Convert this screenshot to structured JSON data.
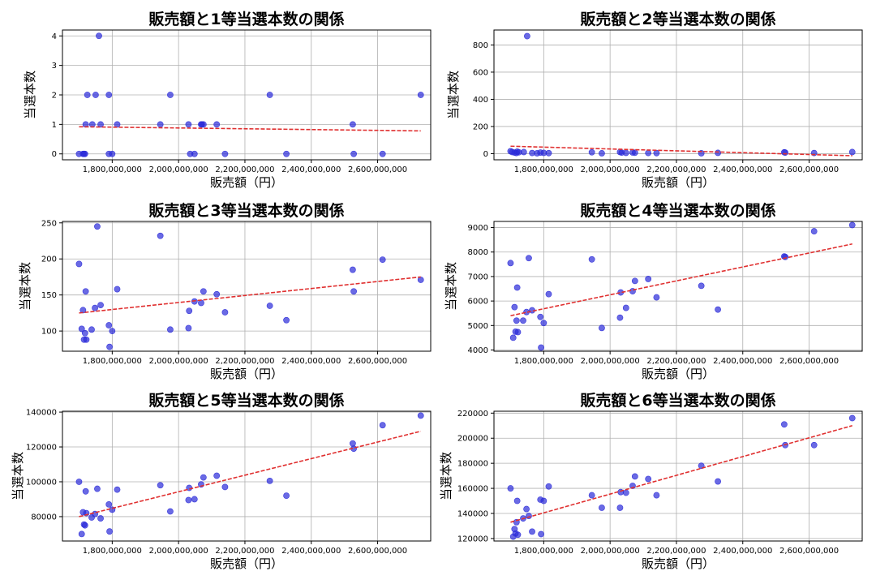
{
  "figure": {
    "x_tick_labels": [
      "1,800,000,000",
      "2,000,000,000",
      "2,200,000,000",
      "2,400,000,000",
      "2,600,000,000"
    ],
    "colors": {
      "point": "#2b2bd9",
      "trend": "#e03030",
      "grid": "#b0b0b0"
    }
  },
  "chart_data": [
    {
      "type": "scatter",
      "title": "販売額と1等当選本数の関係",
      "xlabel": "販売額（円）",
      "ylabel": "当選本数",
      "xlim": [
        1650000000,
        2760000000
      ],
      "ylim": [
        -0.2,
        4.2
      ],
      "x_ticks": [
        1800000000,
        2000000000,
        2200000000,
        2400000000,
        2600000000
      ],
      "y_ticks": [
        0,
        1,
        2,
        3,
        4
      ],
      "y_tick_labels": [
        "0",
        "1",
        "2",
        "3",
        "4"
      ],
      "grid": true,
      "trend_line": {
        "x": [
          1700000000,
          2730000000
        ],
        "y": [
          0.92,
          0.78
        ]
      },
      "points": [
        [
          1700000000,
          0
        ],
        [
          1712000000,
          0
        ],
        [
          1715000000,
          0
        ],
        [
          1718000000,
          0
        ],
        [
          1720000000,
          1
        ],
        [
          1725000000,
          2
        ],
        [
          1740000000,
          1
        ],
        [
          1750000000,
          2
        ],
        [
          1760000000,
          4
        ],
        [
          1765000000,
          1
        ],
        [
          1790000000,
          2
        ],
        [
          1790000000,
          0
        ],
        [
          1800000000,
          0
        ],
        [
          1815000000,
          1
        ],
        [
          1945000000,
          1
        ],
        [
          1975000000,
          2
        ],
        [
          2030000000,
          1
        ],
        [
          2035000000,
          0
        ],
        [
          2048000000,
          0
        ],
        [
          2068000000,
          1
        ],
        [
          2070000000,
          1
        ],
        [
          2075000000,
          1
        ],
        [
          2115000000,
          1
        ],
        [
          2140000000,
          0
        ],
        [
          2275000000,
          2
        ],
        [
          2325000000,
          0
        ],
        [
          2525000000,
          1
        ],
        [
          2528000000,
          0
        ],
        [
          2615000000,
          0
        ],
        [
          2730000000,
          2
        ]
      ]
    },
    {
      "type": "scatter",
      "title": "販売額と2等当選本数の関係",
      "xlabel": "販売額（円）",
      "ylabel": "当選本数",
      "xlim": [
        1650000000,
        2760000000
      ],
      "ylim": [
        -45,
        910
      ],
      "x_ticks": [
        1800000000,
        2000000000,
        2200000000,
        2400000000,
        2600000000
      ],
      "y_ticks": [
        0,
        200,
        400,
        600,
        800
      ],
      "y_tick_labels": [
        "0",
        "200",
        "400",
        "600",
        "800"
      ],
      "grid": true,
      "trend_line": {
        "x": [
          1700000000,
          2730000000
        ],
        "y": [
          55,
          -15
        ]
      },
      "points": [
        [
          1700000000,
          18
        ],
        [
          1705000000,
          12
        ],
        [
          1712000000,
          8
        ],
        [
          1718000000,
          5
        ],
        [
          1720000000,
          15
        ],
        [
          1725000000,
          10
        ],
        [
          1740000000,
          12
        ],
        [
          1750000000,
          865
        ],
        [
          1765000000,
          5
        ],
        [
          1780000000,
          3
        ],
        [
          1790000000,
          8
        ],
        [
          1800000000,
          6
        ],
        [
          1815000000,
          4
        ],
        [
          1945000000,
          10
        ],
        [
          1975000000,
          3
        ],
        [
          2030000000,
          12
        ],
        [
          2035000000,
          8
        ],
        [
          2048000000,
          6
        ],
        [
          2068000000,
          9
        ],
        [
          2075000000,
          7
        ],
        [
          2115000000,
          5
        ],
        [
          2140000000,
          4
        ],
        [
          2275000000,
          3
        ],
        [
          2325000000,
          6
        ],
        [
          2525000000,
          10
        ],
        [
          2528000000,
          8
        ],
        [
          2615000000,
          5
        ],
        [
          2730000000,
          12
        ]
      ]
    },
    {
      "type": "scatter",
      "title": "販売額と3等当選本数の関係",
      "xlabel": "販売額（円）",
      "ylabel": "当選本数",
      "xlim": [
        1650000000,
        2760000000
      ],
      "ylim": [
        72,
        252
      ],
      "x_ticks": [
        1800000000,
        2000000000,
        2200000000,
        2400000000,
        2600000000
      ],
      "y_ticks": [
        100,
        150,
        200,
        250
      ],
      "y_tick_labels": [
        "100",
        "150",
        "200",
        "250"
      ],
      "grid": true,
      "trend_line": {
        "x": [
          1700000000,
          2730000000
        ],
        "y": [
          125,
          175
        ]
      },
      "points": [
        [
          1700000000,
          193
        ],
        [
          1708000000,
          103
        ],
        [
          1712000000,
          129
        ],
        [
          1715000000,
          88
        ],
        [
          1718000000,
          97
        ],
        [
          1720000000,
          155
        ],
        [
          1722000000,
          88
        ],
        [
          1738000000,
          102
        ],
        [
          1748000000,
          132
        ],
        [
          1755000000,
          245
        ],
        [
          1765000000,
          136
        ],
        [
          1790000000,
          108
        ],
        [
          1792000000,
          78
        ],
        [
          1800000000,
          100
        ],
        [
          1815000000,
          158
        ],
        [
          1945000000,
          232
        ],
        [
          1975000000,
          102
        ],
        [
          2030000000,
          104
        ],
        [
          2032000000,
          128
        ],
        [
          2048000000,
          141
        ],
        [
          2068000000,
          139
        ],
        [
          2075000000,
          155
        ],
        [
          2115000000,
          151
        ],
        [
          2140000000,
          126
        ],
        [
          2275000000,
          135
        ],
        [
          2325000000,
          115
        ],
        [
          2525000000,
          185
        ],
        [
          2528000000,
          155
        ],
        [
          2615000000,
          199
        ],
        [
          2730000000,
          171
        ]
      ]
    },
    {
      "type": "scatter",
      "title": "販売額と4等当選本数の関係",
      "xlabel": "販売額（円）",
      "ylabel": "当選本数",
      "xlim": [
        1650000000,
        2760000000
      ],
      "ylim": [
        3950,
        9250
      ],
      "x_ticks": [
        1800000000,
        2000000000,
        2200000000,
        2400000000,
        2600000000
      ],
      "y_ticks": [
        4000,
        5000,
        6000,
        7000,
        8000,
        9000
      ],
      "y_tick_labels": [
        "4000",
        "5000",
        "6000",
        "7000",
        "8000",
        "9000"
      ],
      "grid": true,
      "trend_line": {
        "x": [
          1700000000,
          2730000000
        ],
        "y": [
          5400,
          8330
        ]
      },
      "points": [
        [
          1700000000,
          7550
        ],
        [
          1708000000,
          4500
        ],
        [
          1712000000,
          5750
        ],
        [
          1715000000,
          4750
        ],
        [
          1718000000,
          5200
        ],
        [
          1720000000,
          6550
        ],
        [
          1722000000,
          4730
        ],
        [
          1738000000,
          5200
        ],
        [
          1748000000,
          5550
        ],
        [
          1755000000,
          7750
        ],
        [
          1765000000,
          5620
        ],
        [
          1790000000,
          5350
        ],
        [
          1792000000,
          4100
        ],
        [
          1800000000,
          5100
        ],
        [
          1815000000,
          6280
        ],
        [
          1945000000,
          7700
        ],
        [
          1975000000,
          4900
        ],
        [
          2030000000,
          5320
        ],
        [
          2032000000,
          6350
        ],
        [
          2048000000,
          5720
        ],
        [
          2068000000,
          6400
        ],
        [
          2075000000,
          6820
        ],
        [
          2115000000,
          6900
        ],
        [
          2140000000,
          6150
        ],
        [
          2275000000,
          6620
        ],
        [
          2325000000,
          5650
        ],
        [
          2525000000,
          7820
        ],
        [
          2528000000,
          7800
        ],
        [
          2615000000,
          8850
        ],
        [
          2730000000,
          9100
        ]
      ]
    },
    {
      "type": "scatter",
      "title": "販売額と5等当選本数の関係",
      "xlabel": "販売額（円）",
      "ylabel": "当選本数",
      "xlim": [
        1650000000,
        2760000000
      ],
      "ylim": [
        66000,
        140500
      ],
      "x_ticks": [
        1800000000,
        2000000000,
        2200000000,
        2400000000,
        2600000000
      ],
      "y_ticks": [
        80000,
        100000,
        120000,
        140000
      ],
      "y_tick_labels": [
        "80000",
        "100000",
        "120000",
        "140000"
      ],
      "grid": true,
      "trend_line": {
        "x": [
          1700000000,
          2730000000
        ],
        "y": [
          80000,
          129000
        ]
      },
      "points": [
        [
          1700000000,
          100000
        ],
        [
          1708000000,
          70000
        ],
        [
          1712000000,
          82500
        ],
        [
          1715000000,
          75500
        ],
        [
          1718000000,
          75000
        ],
        [
          1720000000,
          94500
        ],
        [
          1722000000,
          82000
        ],
        [
          1738000000,
          79500
        ],
        [
          1748000000,
          81500
        ],
        [
          1755000000,
          96000
        ],
        [
          1765000000,
          79000
        ],
        [
          1790000000,
          87000
        ],
        [
          1792000000,
          71500
        ],
        [
          1800000000,
          84000
        ],
        [
          1815000000,
          95500
        ],
        [
          1945000000,
          98000
        ],
        [
          1975000000,
          83000
        ],
        [
          2030000000,
          89500
        ],
        [
          2032000000,
          96500
        ],
        [
          2048000000,
          90000
        ],
        [
          2068000000,
          98500
        ],
        [
          2075000000,
          102500
        ],
        [
          2115000000,
          103500
        ],
        [
          2140000000,
          97000
        ],
        [
          2275000000,
          100500
        ],
        [
          2325000000,
          92000
        ],
        [
          2525000000,
          122000
        ],
        [
          2528000000,
          119000
        ],
        [
          2615000000,
          132500
        ],
        [
          2730000000,
          138000
        ]
      ]
    },
    {
      "type": "scatter",
      "title": "販売額と6等当選本数の関係",
      "xlabel": "販売額（円）",
      "ylabel": "当選本数",
      "xlim": [
        1650000000,
        2760000000
      ],
      "ylim": [
        118000,
        221500
      ],
      "x_ticks": [
        1800000000,
        2000000000,
        2200000000,
        2400000000,
        2600000000
      ],
      "y_ticks": [
        120000,
        140000,
        160000,
        180000,
        200000,
        220000
      ],
      "y_tick_labels": [
        "120000",
        "140000",
        "160000",
        "180000",
        "200000",
        "220000"
      ],
      "grid": true,
      "trend_line": {
        "x": [
          1700000000,
          2730000000
        ],
        "y": [
          133000,
          210000
        ]
      },
      "points": [
        [
          1700000000,
          160000
        ],
        [
          1708000000,
          121500
        ],
        [
          1712000000,
          127500
        ],
        [
          1715000000,
          124000
        ],
        [
          1718000000,
          133000
        ],
        [
          1720000000,
          150000
        ],
        [
          1722000000,
          123000
        ],
        [
          1738000000,
          136000
        ],
        [
          1748000000,
          143500
        ],
        [
          1755000000,
          138000
        ],
        [
          1765000000,
          125500
        ],
        [
          1790000000,
          151000
        ],
        [
          1792000000,
          123500
        ],
        [
          1800000000,
          150000
        ],
        [
          1815000000,
          161500
        ],
        [
          1945000000,
          154500
        ],
        [
          1975000000,
          144500
        ],
        [
          2030000000,
          144500
        ],
        [
          2032000000,
          157000
        ],
        [
          2048000000,
          156500
        ],
        [
          2068000000,
          162000
        ],
        [
          2075000000,
          169500
        ],
        [
          2115000000,
          167500
        ],
        [
          2140000000,
          154500
        ],
        [
          2275000000,
          178000
        ],
        [
          2325000000,
          165500
        ],
        [
          2525000000,
          211000
        ],
        [
          2528000000,
          194500
        ],
        [
          2615000000,
          194500
        ],
        [
          2730000000,
          216000
        ]
      ]
    }
  ]
}
